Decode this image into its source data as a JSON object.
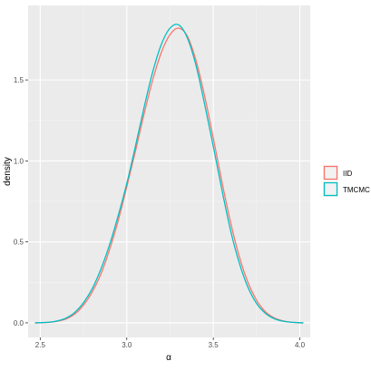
{
  "chart_data": {
    "type": "line",
    "title": "",
    "xlabel": "α",
    "ylabel": "density",
    "xlim": [
      2.43,
      4.06
    ],
    "ylim": [
      -0.09,
      1.96
    ],
    "x_ticks": [
      {
        "value": 2.5,
        "label": "2.5"
      },
      {
        "value": 3.0,
        "label": "3.0"
      },
      {
        "value": 3.5,
        "label": "3.5"
      },
      {
        "value": 4.0,
        "label": "4.0"
      }
    ],
    "y_ticks": [
      {
        "value": 0.0,
        "label": "0.0"
      },
      {
        "value": 0.5,
        "label": "0.5"
      },
      {
        "value": 1.0,
        "label": "1.0"
      },
      {
        "value": 1.5,
        "label": "1.5"
      }
    ],
    "grid": true,
    "legend_position": "right",
    "series": [
      {
        "name": "IID",
        "color": "#F8766D",
        "x": [
          2.47,
          2.55,
          2.6,
          2.65,
          2.7,
          2.75,
          2.8,
          2.85,
          2.9,
          2.95,
          3.0,
          3.05,
          3.1,
          3.15,
          3.2,
          3.25,
          3.3,
          3.35,
          3.4,
          3.45,
          3.5,
          3.55,
          3.6,
          3.65,
          3.7,
          3.75,
          3.8,
          3.85,
          3.9,
          3.95,
          4.02
        ],
        "y": [
          0.0,
          0.003,
          0.01,
          0.025,
          0.055,
          0.11,
          0.19,
          0.3,
          0.45,
          0.63,
          0.84,
          1.06,
          1.29,
          1.5,
          1.67,
          1.78,
          1.82,
          1.77,
          1.62,
          1.4,
          1.14,
          0.87,
          0.62,
          0.41,
          0.25,
          0.14,
          0.07,
          0.032,
          0.013,
          0.004,
          0.0
        ]
      },
      {
        "name": "TMCMC",
        "color": "#00BFC4",
        "x": [
          2.47,
          2.55,
          2.6,
          2.65,
          2.7,
          2.75,
          2.8,
          2.85,
          2.9,
          2.95,
          3.0,
          3.05,
          3.1,
          3.15,
          3.2,
          3.25,
          3.3,
          3.35,
          3.4,
          3.45,
          3.5,
          3.55,
          3.6,
          3.65,
          3.7,
          3.75,
          3.8,
          3.85,
          3.9,
          3.95,
          4.02
        ],
        "y": [
          0.0,
          0.004,
          0.012,
          0.03,
          0.065,
          0.125,
          0.21,
          0.33,
          0.48,
          0.66,
          0.86,
          1.09,
          1.33,
          1.55,
          1.72,
          1.82,
          1.84,
          1.76,
          1.59,
          1.35,
          1.09,
          0.82,
          0.57,
          0.37,
          0.22,
          0.12,
          0.06,
          0.027,
          0.011,
          0.004,
          0.0
        ]
      }
    ]
  }
}
